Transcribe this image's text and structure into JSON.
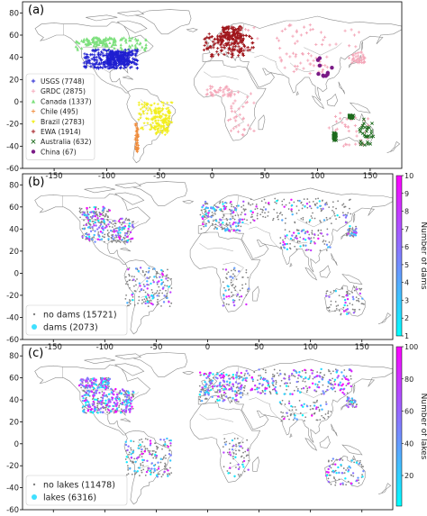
{
  "chart_data": [
    {
      "type": "scatter",
      "panel_label": "(a)",
      "xlim": [
        -180,
        180
      ],
      "ylim": [
        -60,
        90
      ],
      "x_ticks": [
        -150,
        -100,
        -50,
        0,
        50,
        100,
        150
      ],
      "y_ticks": [
        -60,
        -40,
        -20,
        0,
        20,
        40,
        60,
        80
      ],
      "legend_position": "lower-left",
      "series": [
        {
          "name": "USGS (7748)",
          "color": "#1f1fd0",
          "marker": "plus",
          "extent": {
            "lon": [
              -124,
              -68
            ],
            "lat": [
              26,
              49
            ]
          }
        },
        {
          "name": "GRDC (2875)",
          "color": "#f4a6b8",
          "marker": "plus",
          "extent": {
            "lon": [
              -10,
              150
            ],
            "lat": [
              -35,
              72
            ]
          }
        },
        {
          "name": "Canada (1337)",
          "color": "#7ee07e",
          "marker": "triangle",
          "extent": {
            "lon": [
              -135,
              -60
            ],
            "lat": [
              44,
              62
            ]
          }
        },
        {
          "name": "Chile (495)",
          "color": "#f08c3a",
          "marker": "plus",
          "extent": {
            "lon": [
              -74,
              -68
            ],
            "lat": [
              -55,
              -18
            ]
          }
        },
        {
          "name": "Brazil (2783)",
          "color": "#f2ee1c",
          "marker": "star",
          "extent": {
            "lon": [
              -73,
              -35
            ],
            "lat": [
              -33,
              4
            ]
          }
        },
        {
          "name": "EWA (1914)",
          "color": "#a0161c",
          "marker": "plus",
          "extent": {
            "lon": [
              -10,
              40
            ],
            "lat": [
              36,
              70
            ]
          }
        },
        {
          "name": "Australia (632)",
          "color": "#1d6b1d",
          "marker": "x",
          "extent": {
            "lon": [
              114,
              153
            ],
            "lat": [
              -43,
              -11
            ]
          }
        },
        {
          "name": "China (67)",
          "color": "#7a1a86",
          "marker": "circle",
          "extent": {
            "lon": [
              98,
              122
            ],
            "lat": [
              22,
              42
            ]
          }
        }
      ]
    },
    {
      "type": "scatter",
      "panel_label": "(b)",
      "xlim": [
        -180,
        180
      ],
      "ylim": [
        -60,
        90
      ],
      "x_ticks": [
        -150,
        -100,
        -50,
        0,
        50,
        100,
        150
      ],
      "y_ticks": [
        -60,
        -40,
        -20,
        0,
        20,
        40,
        60,
        80
      ],
      "legend_position": "lower-left",
      "colorbar": {
        "label": "Number of dams",
        "min": 1,
        "max": 10,
        "ticks": [
          1,
          2,
          3,
          4,
          5,
          6,
          7,
          8,
          9,
          10
        ],
        "colors": [
          "#00ffff",
          "#ff00ff"
        ]
      },
      "series": [
        {
          "name": "no dams (15721)",
          "color": "#808080",
          "marker": "dot"
        },
        {
          "name": "dams (2073)",
          "color": "#40e0ff",
          "marker": "circle"
        }
      ]
    },
    {
      "type": "scatter",
      "panel_label": "(c)",
      "xlim": [
        -180,
        180
      ],
      "ylim": [
        -60,
        90
      ],
      "x_ticks": [
        -150,
        -100,
        -50,
        0,
        50,
        100,
        150
      ],
      "y_ticks": [
        -60,
        -40,
        -20,
        0,
        20,
        40,
        60,
        80
      ],
      "legend_position": "lower-left",
      "colorbar": {
        "label": "Number of lakes",
        "min": 1,
        "max": 100,
        "ticks": [
          20,
          40,
          60,
          80,
          100
        ],
        "colors": [
          "#00ffff",
          "#ff00ff"
        ]
      },
      "series": [
        {
          "name": "no lakes (11478)",
          "color": "#808080",
          "marker": "dot"
        },
        {
          "name": "lakes (6316)",
          "color": "#40e0ff",
          "marker": "circle"
        }
      ]
    }
  ]
}
